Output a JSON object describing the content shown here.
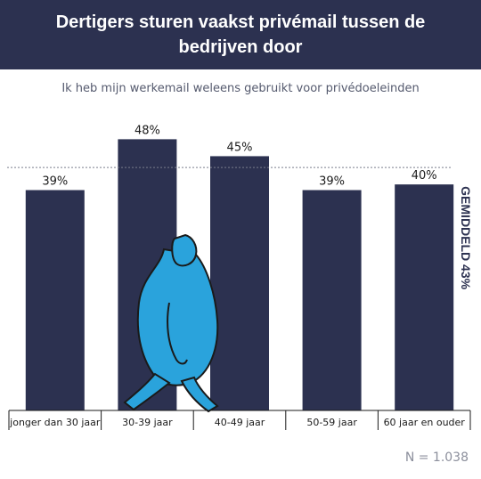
{
  "header": {
    "title": "Dertigers sturen vaakst privémail tussen de bedrijven door"
  },
  "subtitle": "Ik heb mijn werkemail weleens gebruikt voor privédoeleinden",
  "footer": {
    "n_label": "N = 1.038"
  },
  "colors": {
    "bar": "#2c3150",
    "header": "#2c3150",
    "figure": "#2aa3dc"
  },
  "illustration": {
    "icon": "walking-person-icon"
  },
  "chart_data": {
    "type": "bar",
    "categories": [
      "jonger dan 30 jaar",
      "30-39 jaar",
      "40-49 jaar",
      "50-59 jaar",
      "60 jaar en ouder"
    ],
    "values": [
      39,
      48,
      45,
      39,
      40
    ],
    "data_labels": [
      "39%",
      "48%",
      "45%",
      "39%",
      "40%"
    ],
    "unit": "%",
    "ylim": [
      0,
      52
    ],
    "average": {
      "value": 43,
      "label": "GEMIDDELD 43%"
    },
    "grid": false
  }
}
